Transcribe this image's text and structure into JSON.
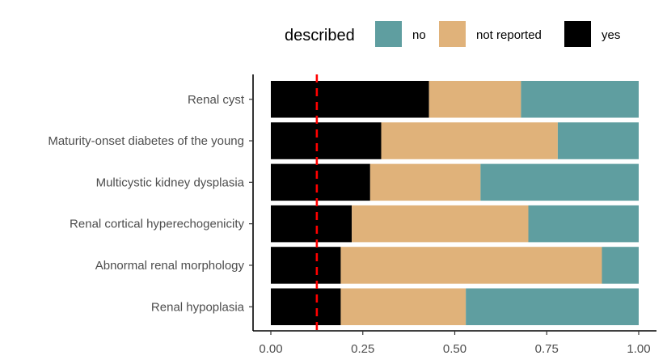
{
  "chart_data": {
    "type": "bar",
    "orientation": "horizontal",
    "stacked": true,
    "categories": [
      "Renal cyst",
      "Maturity-onset diabetes of the young",
      "Multicystic kidney dysplasia",
      "Renal cortical hyperechogenicity",
      "Abnormal renal morphology",
      "Renal hypoplasia"
    ],
    "series": [
      {
        "name": "yes",
        "color": "#000000",
        "values": [
          0.43,
          0.3,
          0.27,
          0.22,
          0.19,
          0.19
        ]
      },
      {
        "name": "not reported",
        "color": "#E0B27A",
        "values": [
          0.25,
          0.48,
          0.3,
          0.48,
          0.71,
          0.34
        ]
      },
      {
        "name": "no",
        "color": "#5F9EA0",
        "values": [
          0.32,
          0.22,
          0.43,
          0.3,
          0.1,
          0.47
        ]
      }
    ],
    "legend": {
      "title": "described",
      "position": "top",
      "items": [
        {
          "name": "no",
          "color": "#5F9EA0"
        },
        {
          "name": "not reported",
          "color": "#E0B27A"
        },
        {
          "name": "yes",
          "color": "#000000"
        }
      ]
    },
    "reference_line": {
      "x": 0.125,
      "color": "#FF0000",
      "style": "dashed"
    },
    "xlim": [
      0,
      1
    ],
    "xticks": [
      0,
      0.25,
      0.5,
      0.75,
      1
    ],
    "xtick_labels": [
      "0.00",
      "0.25",
      "0.50",
      "0.75",
      "1.00"
    ],
    "title": "",
    "xlabel": "",
    "ylabel": "",
    "grid": false
  }
}
